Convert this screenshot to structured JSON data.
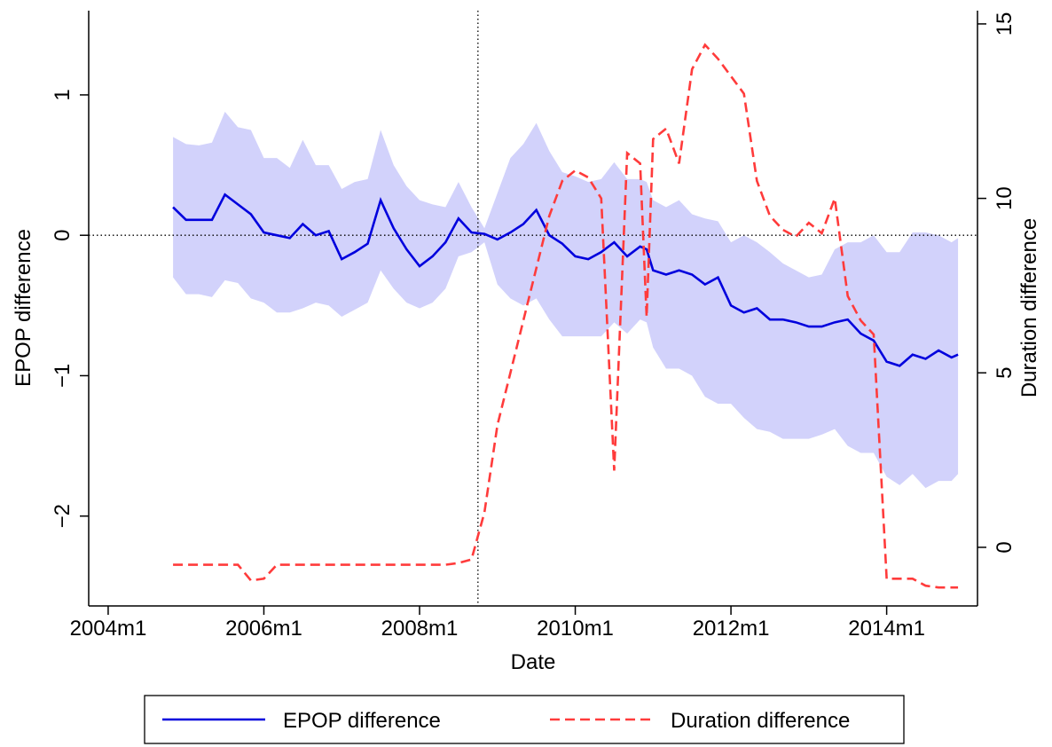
{
  "chart_data": {
    "type": "line",
    "xlabel": "Date",
    "ylabel": "EPOP difference",
    "y2label": "Duration difference",
    "x": [
      "2004m11",
      "2005m1",
      "2005m3",
      "2005m5",
      "2005m7",
      "2005m9",
      "2005m11",
      "2006m1",
      "2006m3",
      "2006m5",
      "2006m7",
      "2006m9",
      "2006m11",
      "2007m1",
      "2007m3",
      "2007m5",
      "2007m7",
      "2007m9",
      "2007m11",
      "2008m1",
      "2008m3",
      "2008m5",
      "2008m7",
      "2008m9",
      "2008m11",
      "2009m1",
      "2009m3",
      "2009m5",
      "2009m7",
      "2009m9",
      "2009m11",
      "2010m1",
      "2010m3",
      "2010m5",
      "2010m7",
      "2010m9",
      "2010m11",
      "2010m12",
      "2011m1",
      "2011m3",
      "2011m5",
      "2011m7",
      "2011m9",
      "2011m11",
      "2012m1",
      "2012m3",
      "2012m5",
      "2012m7",
      "2012m9",
      "2012m11",
      "2013m1",
      "2013m3",
      "2013m5",
      "2013m7",
      "2013m9",
      "2013m11",
      "2014m1",
      "2014m3",
      "2014m5",
      "2014m7",
      "2014m9",
      "2014m11",
      "2014m12"
    ],
    "series": [
      {
        "name": "EPOP difference",
        "color": "#0000dd",
        "band_color": "#d2d2fb",
        "values": [
          0.2,
          0.11,
          0.11,
          0.11,
          0.29,
          0.22,
          0.15,
          0.02,
          0.0,
          -0.02,
          0.08,
          0.0,
          0.03,
          -0.17,
          -0.12,
          -0.06,
          0.25,
          0.05,
          -0.1,
          -0.22,
          -0.15,
          -0.05,
          0.12,
          0.02,
          0.01,
          -0.03,
          0.02,
          0.08,
          0.18,
          0.0,
          -0.06,
          -0.15,
          -0.17,
          -0.12,
          -0.05,
          -0.15,
          -0.08,
          -0.1,
          -0.25,
          -0.28,
          -0.25,
          -0.28,
          -0.35,
          -0.3,
          -0.5,
          -0.55,
          -0.52,
          -0.6,
          -0.6,
          -0.62,
          -0.65,
          -0.65,
          -0.62,
          -0.6,
          -0.7,
          -0.75,
          -0.9,
          -0.93,
          -0.85,
          -0.88,
          -0.82,
          -0.87,
          -0.85
        ],
        "upper": [
          0.7,
          0.65,
          0.64,
          0.66,
          0.88,
          0.77,
          0.75,
          0.55,
          0.55,
          0.48,
          0.68,
          0.5,
          0.5,
          0.33,
          0.38,
          0.4,
          0.75,
          0.5,
          0.35,
          0.25,
          0.22,
          0.2,
          0.38,
          0.2,
          0.05,
          0.3,
          0.55,
          0.65,
          0.8,
          0.6,
          0.45,
          0.42,
          0.38,
          0.4,
          0.52,
          0.4,
          0.4,
          0.38,
          0.25,
          0.2,
          0.25,
          0.15,
          0.12,
          0.1,
          -0.05,
          0.0,
          -0.05,
          -0.12,
          -0.2,
          -0.25,
          -0.3,
          -0.28,
          -0.1,
          -0.05,
          -0.05,
          0.0,
          -0.12,
          -0.12,
          0.02,
          0.02,
          0.0,
          -0.05,
          -0.02
        ],
        "lower": [
          -0.3,
          -0.42,
          -0.42,
          -0.44,
          -0.32,
          -0.34,
          -0.45,
          -0.48,
          -0.55,
          -0.55,
          -0.52,
          -0.48,
          -0.5,
          -0.58,
          -0.53,
          -0.48,
          -0.25,
          -0.38,
          -0.48,
          -0.52,
          -0.48,
          -0.38,
          -0.15,
          -0.12,
          -0.05,
          -0.35,
          -0.45,
          -0.5,
          -0.45,
          -0.6,
          -0.72,
          -0.72,
          -0.72,
          -0.72,
          -0.62,
          -0.7,
          -0.6,
          -0.62,
          -0.8,
          -0.95,
          -0.95,
          -1.0,
          -1.15,
          -1.2,
          -1.2,
          -1.3,
          -1.38,
          -1.4,
          -1.45,
          -1.45,
          -1.45,
          -1.42,
          -1.38,
          -1.5,
          -1.55,
          -1.55,
          -1.72,
          -1.78,
          -1.7,
          -1.8,
          -1.75,
          -1.75,
          -1.7
        ]
      },
      {
        "name": "Duration difference",
        "color": "#ff3b3b",
        "dashed": true,
        "axis": "y2",
        "values": [
          -0.5,
          -0.5,
          -0.5,
          -0.5,
          -0.5,
          -0.5,
          -0.95,
          -0.9,
          -0.5,
          -0.5,
          -0.5,
          -0.5,
          -0.5,
          -0.5,
          -0.5,
          -0.5,
          -0.5,
          -0.5,
          -0.5,
          -0.5,
          -0.5,
          -0.5,
          -0.45,
          -0.35,
          1.0,
          3.5,
          5.0,
          6.5,
          8.0,
          9.5,
          10.5,
          10.8,
          10.6,
          10.0,
          2.2,
          11.3,
          11.0,
          6.6,
          11.7,
          12.0,
          11.0,
          13.7,
          14.4,
          14.0,
          13.5,
          13.0,
          10.5,
          9.5,
          9.1,
          8.9,
          9.3,
          9.0,
          10.0,
          7.2,
          6.5,
          6.1,
          -0.9,
          -0.9,
          -0.9,
          -1.1,
          -1.15,
          -1.15,
          -1.15
        ]
      }
    ],
    "xlim": [
      "2003m10",
      "2015m3"
    ],
    "xticks": [
      "2004m1",
      "2006m1",
      "2008m1",
      "2010m1",
      "2012m1",
      "2014m1"
    ],
    "ylim": [
      -2.64,
      1.6
    ],
    "yticks": [
      {
        "value": -2,
        "label": "−2"
      },
      {
        "value": -1,
        "label": "−1"
      },
      0,
      1
    ],
    "y2lim": [
      -1.68,
      15.38
    ],
    "y2ticks": [
      0,
      5,
      10,
      15
    ],
    "xline": "2008m10",
    "yline": 0,
    "legend": "bottom"
  }
}
